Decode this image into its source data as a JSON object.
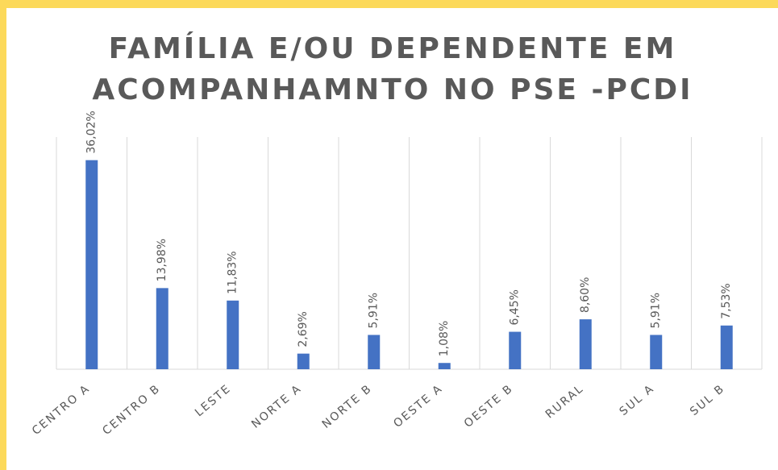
{
  "chart_data": {
    "type": "bar",
    "title": [
      "FAMÍLIA E/OU DEPENDENTE EM",
      "ACOMPANHAMNTO NO PSE -PCDI"
    ],
    "categories": [
      "CENTRO A",
      "CENTRO B",
      "LESTE",
      "NORTE A",
      "NORTE B",
      "OESTE A",
      "OESTE B",
      "RURAL",
      "SUL A",
      "SUL B"
    ],
    "values": [
      36.02,
      13.98,
      11.83,
      2.69,
      5.91,
      1.08,
      6.45,
      8.6,
      5.91,
      7.53
    ],
    "value_labels": [
      "36,02%",
      "13,98%",
      "11,83%",
      "2,69%",
      "5,91%",
      "1,08%",
      "6,45%",
      "8,60%",
      "5,91%",
      "7,53%"
    ],
    "color": "#4472c4",
    "ylim": [
      0,
      40
    ]
  }
}
